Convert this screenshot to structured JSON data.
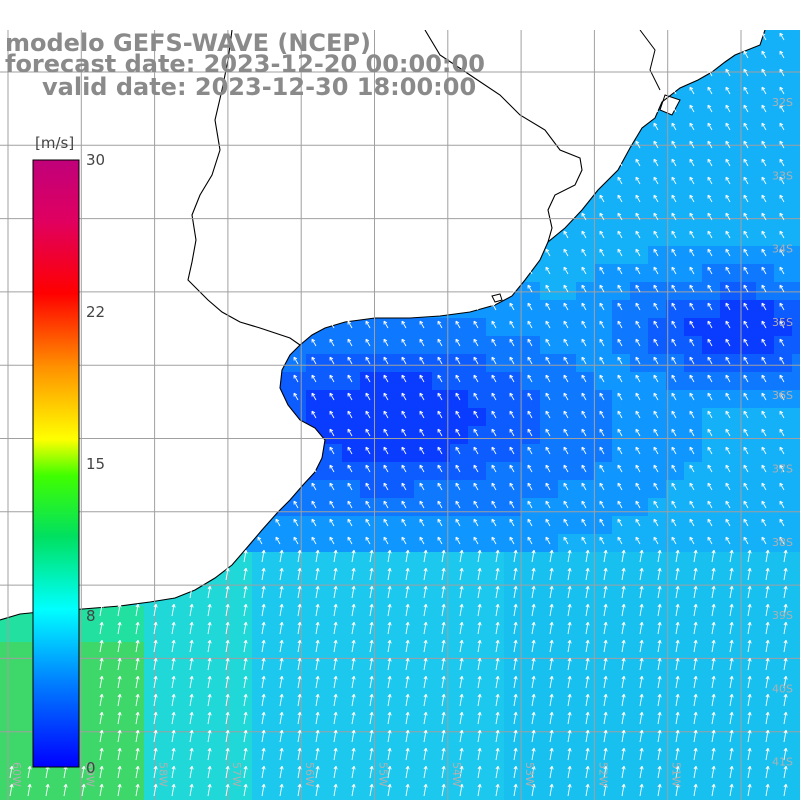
{
  "title": {
    "line1": "modelo GEFS-WAVE (NCEP)",
    "line2": "forecast date: 2023-12-20 00:00:00",
    "line3": "valid date: 2023-12-30 18:00:00"
  },
  "legend": {
    "unit": "[m/s]",
    "ticks": [
      "30",
      "22",
      "15",
      "8",
      "0"
    ],
    "colors": [
      "#0000ff",
      "#00a0ff",
      "#00ffff",
      "#00e060",
      "#40ff00",
      "#ffff00",
      "#ff9000",
      "#ff0000",
      "#cc0077"
    ]
  },
  "map": {
    "lat_labels": [
      "32S",
      "33S",
      "34S",
      "35S",
      "36S",
      "37S",
      "38S",
      "39S",
      "40S",
      "41S"
    ],
    "lon_labels": [
      "60W",
      "59W",
      "58W",
      "57W",
      "56W",
      "55W",
      "54W",
      "53W",
      "52W",
      "51W"
    ],
    "land_color": "#ffffff",
    "grid_color": "#a0a0a0"
  }
}
